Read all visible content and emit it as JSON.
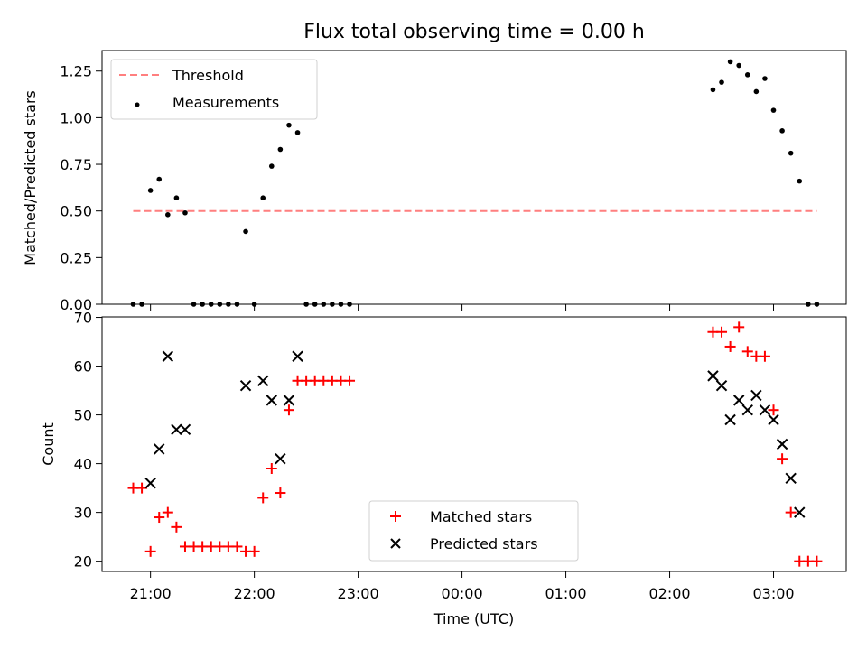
{
  "title": "Flux total observing time = 0.00 h",
  "colors": {
    "threshold": "#ff7f7f",
    "matched": "#ff0000",
    "predicted": "#000000",
    "measurements": "#000000"
  },
  "chart_data": [
    {
      "type": "scatter",
      "ylabel": "Matched/Predicted stars",
      "ylim": [
        0,
        1.36
      ],
      "yticks": [
        "0.00",
        "0.25",
        "0.50",
        "0.75",
        "1.00",
        "1.25"
      ],
      "ytick_values": [
        0,
        0.25,
        0.5,
        0.75,
        1.0,
        1.25
      ],
      "legend_position": "upper-left",
      "threshold": {
        "name": "Threshold",
        "value": 0.5,
        "x_start": "20:50",
        "x_end": "03:25"
      },
      "series": [
        {
          "name": "Measurements",
          "points": [
            [
              "20:50",
              0
            ],
            [
              "20:55",
              0
            ],
            [
              "21:00",
              0.61
            ],
            [
              "21:05",
              0.67
            ],
            [
              "21:10",
              0.48
            ],
            [
              "21:15",
              0.57
            ],
            [
              "21:20",
              0.49
            ],
            [
              "21:25",
              0
            ],
            [
              "21:30",
              0
            ],
            [
              "21:35",
              0
            ],
            [
              "21:40",
              0
            ],
            [
              "21:45",
              0
            ],
            [
              "21:50",
              0
            ],
            [
              "21:55",
              0.39
            ],
            [
              "22:00",
              0
            ],
            [
              "22:05",
              0.57
            ],
            [
              "22:10",
              0.74
            ],
            [
              "22:15",
              0.83
            ],
            [
              "22:20",
              0.96
            ],
            [
              "22:25",
              0.92
            ],
            [
              "22:30",
              0
            ],
            [
              "22:35",
              0
            ],
            [
              "22:40",
              0
            ],
            [
              "22:45",
              0
            ],
            [
              "22:50",
              0
            ],
            [
              "22:55",
              0
            ],
            [
              "02:25",
              1.15
            ],
            [
              "02:30",
              1.19
            ],
            [
              "02:35",
              1.3
            ],
            [
              "02:40",
              1.28
            ],
            [
              "02:45",
              1.23
            ],
            [
              "02:50",
              1.14
            ],
            [
              "02:55",
              1.21
            ],
            [
              "03:00",
              1.04
            ],
            [
              "03:05",
              0.93
            ],
            [
              "03:10",
              0.81
            ],
            [
              "03:15",
              0.66
            ],
            [
              "03:20",
              0
            ],
            [
              "03:25",
              0
            ]
          ]
        }
      ]
    },
    {
      "type": "scatter",
      "xlabel": "Time (UTC)",
      "ylabel": "Count",
      "ylim": [
        17.9,
        70.1
      ],
      "yticks": [
        "20",
        "30",
        "40",
        "50",
        "60",
        "70"
      ],
      "ytick_values": [
        20,
        30,
        40,
        50,
        60,
        70
      ],
      "xticks": [
        "21:00",
        "22:00",
        "23:00",
        "00:00",
        "01:00",
        "02:00",
        "03:00"
      ],
      "legend_position": "lower-center",
      "series": [
        {
          "name": "Matched stars",
          "marker": "plus",
          "points": [
            [
              "20:50",
              35
            ],
            [
              "20:55",
              35
            ],
            [
              "21:00",
              22
            ],
            [
              "21:05",
              29
            ],
            [
              "21:10",
              30
            ],
            [
              "21:15",
              27
            ],
            [
              "21:20",
              23
            ],
            [
              "21:25",
              23
            ],
            [
              "21:30",
              23
            ],
            [
              "21:35",
              23
            ],
            [
              "21:40",
              23
            ],
            [
              "21:45",
              23
            ],
            [
              "21:50",
              23
            ],
            [
              "21:55",
              22
            ],
            [
              "22:00",
              22
            ],
            [
              "22:05",
              33
            ],
            [
              "22:10",
              39
            ],
            [
              "22:15",
              34
            ],
            [
              "22:20",
              51
            ],
            [
              "22:25",
              57
            ],
            [
              "22:30",
              57
            ],
            [
              "22:35",
              57
            ],
            [
              "22:40",
              57
            ],
            [
              "22:45",
              57
            ],
            [
              "22:50",
              57
            ],
            [
              "22:55",
              57
            ],
            [
              "02:25",
              67
            ],
            [
              "02:30",
              67
            ],
            [
              "02:35",
              64
            ],
            [
              "02:40",
              68
            ],
            [
              "02:45",
              63
            ],
            [
              "02:50",
              62
            ],
            [
              "02:55",
              62
            ],
            [
              "03:00",
              51
            ],
            [
              "03:05",
              41
            ],
            [
              "03:10",
              30
            ],
            [
              "03:15",
              20
            ],
            [
              "03:20",
              20
            ],
            [
              "03:25",
              20
            ]
          ]
        },
        {
          "name": "Predicted stars",
          "marker": "x",
          "points": [
            [
              "21:00",
              36
            ],
            [
              "21:05",
              43
            ],
            [
              "21:10",
              62
            ],
            [
              "21:15",
              47
            ],
            [
              "21:20",
              47
            ],
            [
              "21:55",
              56
            ],
            [
              "22:05",
              57
            ],
            [
              "22:10",
              53
            ],
            [
              "22:15",
              41
            ],
            [
              "22:20",
              53
            ],
            [
              "22:25",
              62
            ],
            [
              "02:25",
              58
            ],
            [
              "02:30",
              56
            ],
            [
              "02:35",
              49
            ],
            [
              "02:40",
              53
            ],
            [
              "02:45",
              51
            ],
            [
              "02:50",
              54
            ],
            [
              "02:55",
              51
            ],
            [
              "03:00",
              49
            ],
            [
              "03:05",
              44
            ],
            [
              "03:10",
              37
            ],
            [
              "03:15",
              30
            ]
          ]
        }
      ]
    }
  ]
}
